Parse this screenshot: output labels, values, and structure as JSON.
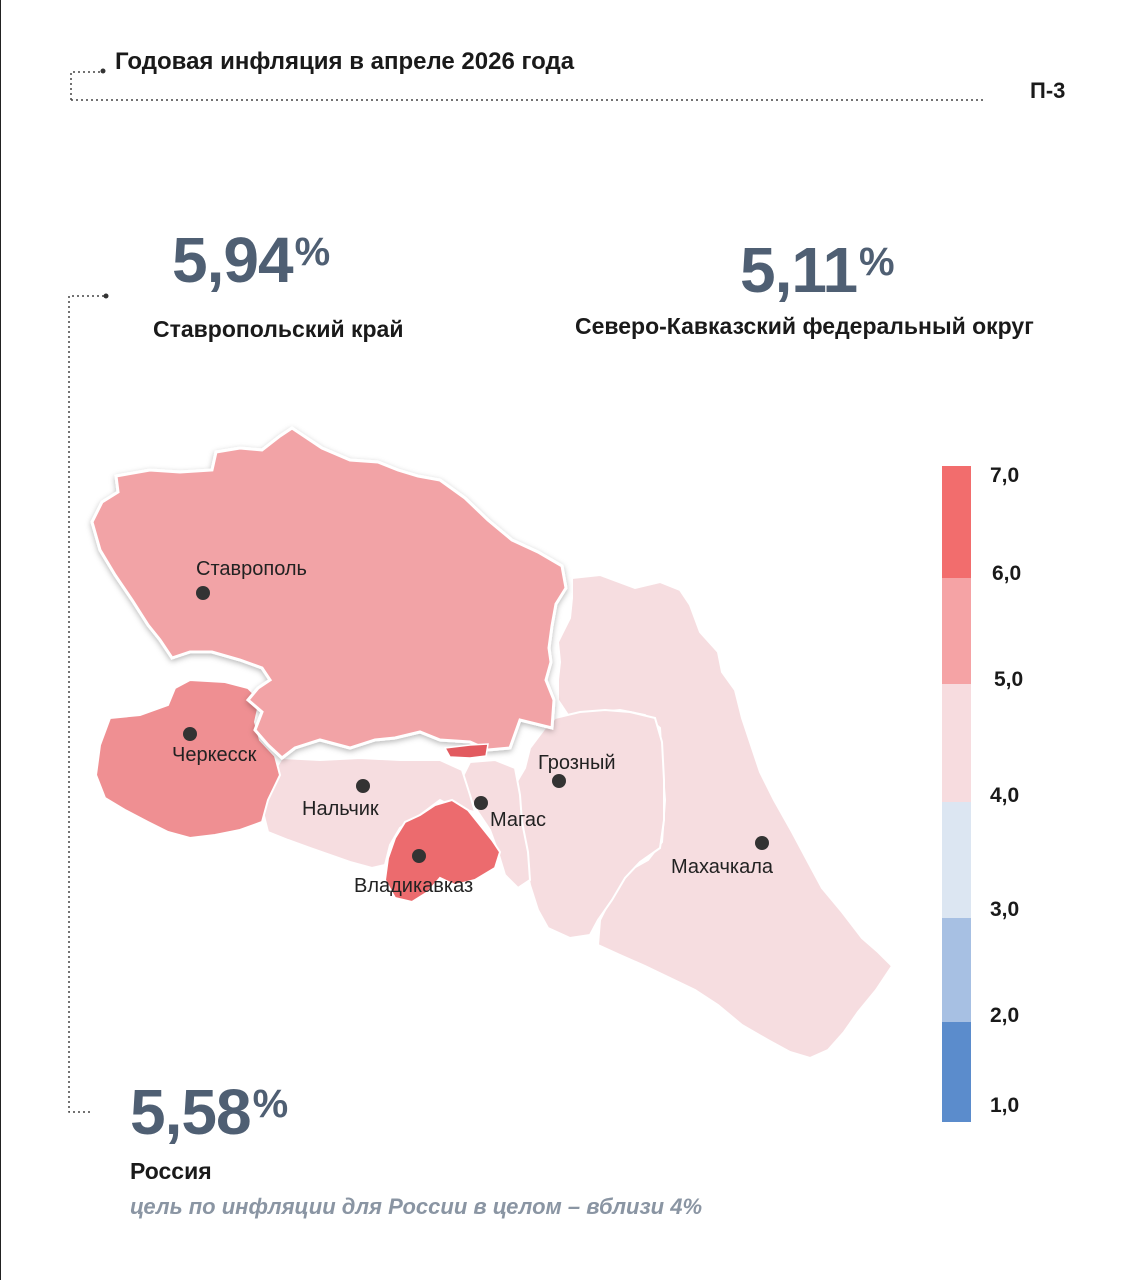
{
  "header": {
    "title": "Годовая инфляция в апреле 2026 года",
    "page_code": "П-3"
  },
  "stats": {
    "stavropol": {
      "value": "5,94",
      "unit": "%",
      "label": "Ставропольский край"
    },
    "skfo": {
      "value": "5,11",
      "unit": "%",
      "label": "Северо-Кавказский федеральный округ"
    },
    "russia": {
      "value": "5,58",
      "unit": "%",
      "label": "Россия"
    }
  },
  "footnote": "цель по инфляции для России в целом – вблизи 4%",
  "colors": {
    "over_6": "#f26d6d",
    "range_5_6": "#f5a3a5",
    "range_4_5": "#f7dcdf",
    "range_3_4": "#dce6f2",
    "range_2_3": "#a7c0e3",
    "range_1_2": "#5b8ccc",
    "stavropol_fill": "#f2a3a6",
    "cherkessk_fill": "#ef8f92",
    "vladikavkaz_fill": "#ec6b6e",
    "low_region_fill": "#f6dde0"
  },
  "map": {
    "cities": [
      {
        "name": "Ставрополь"
      },
      {
        "name": "Черкесск"
      },
      {
        "name": "Нальчик"
      },
      {
        "name": "Магас"
      },
      {
        "name": "Грозный"
      },
      {
        "name": "Владикавказ"
      },
      {
        "name": "Махачкала"
      }
    ]
  },
  "legend": {
    "ticks": [
      "7,0",
      "6,0",
      "5,0",
      "4,0",
      "3,0",
      "2,0",
      "1,0"
    ]
  }
}
